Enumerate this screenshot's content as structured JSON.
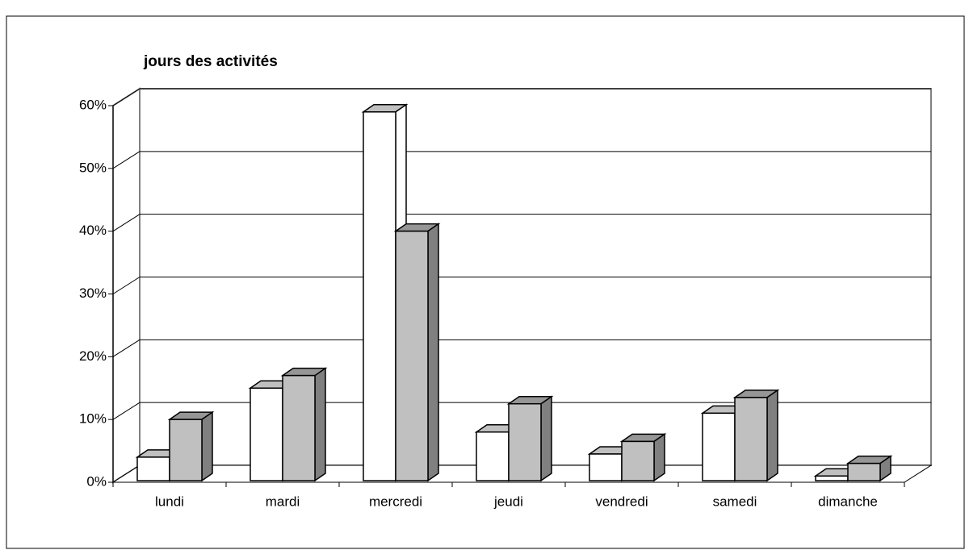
{
  "chart_data": {
    "type": "bar3d",
    "title": "jours des activités",
    "categories": [
      "lundi",
      "mardi",
      "mercredi",
      "jeudi",
      "vendredi",
      "samedi",
      "dimanche"
    ],
    "series": [
      {
        "color": "#ffffff",
        "values": [
          4,
          15,
          59,
          8,
          4.5,
          11,
          1
        ]
      },
      {
        "color": "#c0c0c0",
        "values": [
          10,
          17,
          40,
          12.5,
          6.5,
          13.5,
          3
        ]
      }
    ],
    "ylim": [
      0,
      60
    ],
    "yticks": [
      {
        "value": 0,
        "label": "0%"
      },
      {
        "value": 10,
        "label": "10%"
      },
      {
        "value": 20,
        "label": "20%"
      },
      {
        "value": 30,
        "label": "30%"
      },
      {
        "value": 40,
        "label": "40%"
      },
      {
        "value": 50,
        "label": "50%"
      },
      {
        "value": 60,
        "label": "60%"
      }
    ],
    "grid": true
  }
}
